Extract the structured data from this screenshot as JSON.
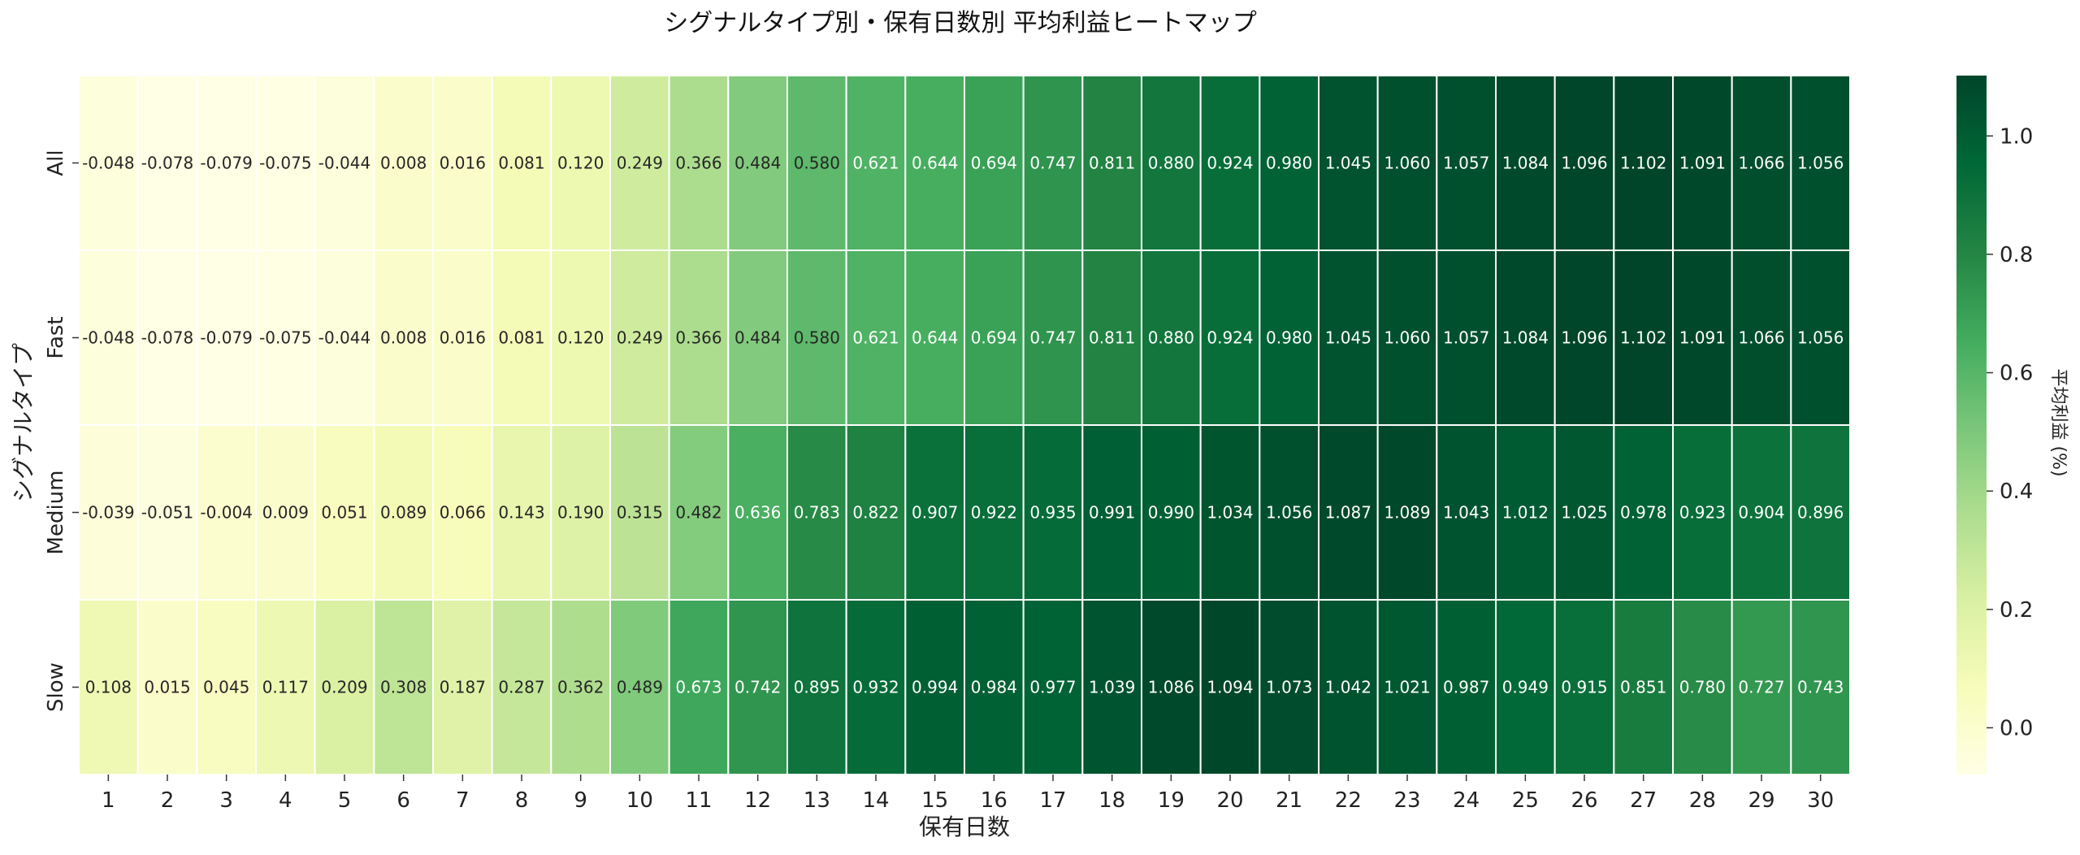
{
  "chart_data": {
    "type": "heatmap",
    "title": "シグナルタイプ別・保有日数別 平均利益ヒートマップ",
    "xlabel": "保有日数",
    "ylabel": "シグナルタイプ",
    "colorbar_label": "平均利益 (%)",
    "colormap": "YlGn",
    "vmin": -0.079,
    "vmax": 1.102,
    "colorbar_ticks": [
      "0.0",
      "0.2",
      "0.4",
      "0.6",
      "0.8",
      "1.0"
    ],
    "x_categories": [
      "1",
      "2",
      "3",
      "4",
      "5",
      "6",
      "7",
      "8",
      "9",
      "10",
      "11",
      "12",
      "13",
      "14",
      "15",
      "16",
      "17",
      "18",
      "19",
      "20",
      "21",
      "22",
      "23",
      "24",
      "25",
      "26",
      "27",
      "28",
      "29",
      "30"
    ],
    "y_categories": [
      "All",
      "Fast",
      "Medium",
      "Slow"
    ],
    "values": [
      [
        -0.048,
        -0.078,
        -0.079,
        -0.075,
        -0.044,
        0.008,
        0.016,
        0.081,
        0.12,
        0.249,
        0.366,
        0.484,
        0.58,
        0.621,
        0.644,
        0.694,
        0.747,
        0.811,
        0.88,
        0.924,
        0.98,
        1.045,
        1.06,
        1.057,
        1.084,
        1.096,
        1.102,
        1.091,
        1.066,
        1.056
      ],
      [
        -0.048,
        -0.078,
        -0.079,
        -0.075,
        -0.044,
        0.008,
        0.016,
        0.081,
        0.12,
        0.249,
        0.366,
        0.484,
        0.58,
        0.621,
        0.644,
        0.694,
        0.747,
        0.811,
        0.88,
        0.924,
        0.98,
        1.045,
        1.06,
        1.057,
        1.084,
        1.096,
        1.102,
        1.091,
        1.066,
        1.056
      ],
      [
        -0.039,
        -0.051,
        -0.004,
        0.009,
        0.051,
        0.089,
        0.066,
        0.143,
        0.19,
        0.315,
        0.482,
        0.636,
        0.783,
        0.822,
        0.907,
        0.922,
        0.935,
        0.991,
        0.99,
        1.034,
        1.056,
        1.087,
        1.089,
        1.043,
        1.012,
        1.025,
        0.978,
        0.923,
        0.904,
        0.896
      ],
      [
        0.108,
        0.015,
        0.045,
        0.117,
        0.209,
        0.308,
        0.187,
        0.287,
        0.362,
        0.489,
        0.673,
        0.742,
        0.895,
        0.932,
        0.994,
        0.984,
        0.977,
        1.039,
        1.086,
        1.094,
        1.073,
        1.042,
        1.021,
        0.987,
        0.949,
        0.915,
        0.851,
        0.78,
        0.727,
        0.743
      ]
    ],
    "value_labels": [
      [
        "-0.048",
        "-0.078",
        "-0.079",
        "-0.075",
        "-0.044",
        "0.008",
        "0.016",
        "0.081",
        "0.120",
        "0.249",
        "0.366",
        "0.484",
        "0.580",
        "0.621",
        "0.644",
        "0.694",
        "0.747",
        "0.811",
        "0.880",
        "0.924",
        "0.980",
        "1.045",
        "1.060",
        "1.057",
        "1.084",
        "1.096",
        "1.102",
        "1.091",
        "1.066",
        "1.056"
      ],
      [
        "-0.048",
        "-0.078",
        "-0.079",
        "-0.075",
        "-0.044",
        "0.008",
        "0.016",
        "0.081",
        "0.120",
        "0.249",
        "0.366",
        "0.484",
        "0.580",
        "0.621",
        "0.644",
        "0.694",
        "0.747",
        "0.811",
        "0.880",
        "0.924",
        "0.980",
        "1.045",
        "1.060",
        "1.057",
        "1.084",
        "1.096",
        "1.102",
        "1.091",
        "1.066",
        "1.056"
      ],
      [
        "-0.039",
        "-0.051",
        "-0.004",
        "0.009",
        "0.051",
        "0.089",
        "0.066",
        "0.143",
        "0.190",
        "0.315",
        "0.482",
        "0.636",
        "0.783",
        "0.822",
        "0.907",
        "0.922",
        "0.935",
        "0.991",
        "0.990",
        "1.034",
        "1.056",
        "1.087",
        "1.089",
        "1.043",
        "1.012",
        "1.025",
        "0.978",
        "0.923",
        "0.904",
        "0.896"
      ],
      [
        "0.108",
        "0.015",
        "0.045",
        "0.117",
        "0.209",
        "0.308",
        "0.187",
        "0.287",
        "0.362",
        "0.489",
        "0.673",
        "0.742",
        "0.895",
        "0.932",
        "0.994",
        "0.984",
        "0.977",
        "1.039",
        "1.086",
        "1.094",
        "1.073",
        "1.042",
        "1.021",
        "0.987",
        "0.949",
        "0.915",
        "0.851",
        "0.780",
        "0.727",
        "0.743"
      ]
    ]
  }
}
